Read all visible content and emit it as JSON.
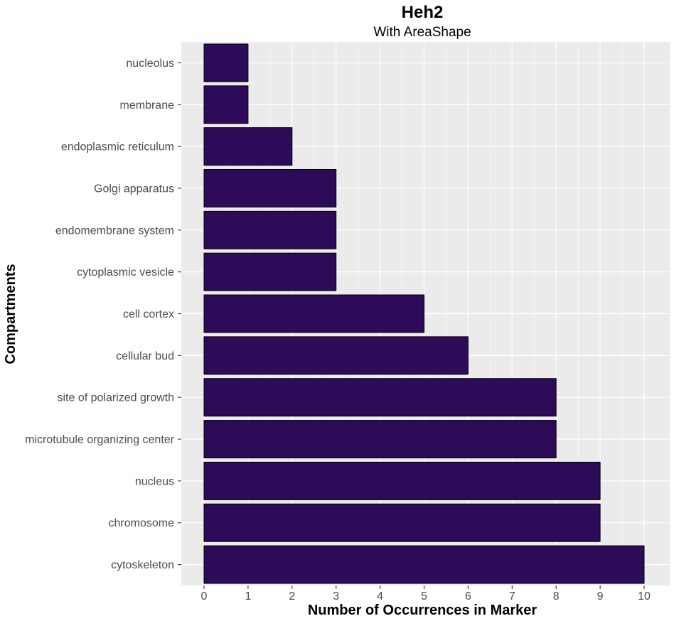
{
  "chart_data": {
    "type": "bar",
    "orientation": "horizontal",
    "title": "Heh2",
    "subtitle": "With AreaShape",
    "xlabel": "Number of Occurrences in Marker",
    "ylabel": "Compartments",
    "categories": [
      "nucleolus",
      "membrane",
      "endoplasmic reticulum",
      "Golgi apparatus",
      "endomembrane system",
      "cytoplasmic vesicle",
      "cell cortex",
      "cellular bud",
      "site of polarized growth",
      "microtubule organizing center",
      "nucleus",
      "chromosome",
      "cytoskeleton"
    ],
    "values": [
      1,
      1,
      2,
      3,
      3,
      3,
      5,
      6,
      8,
      8,
      9,
      9,
      10
    ],
    "xlim": [
      0,
      10
    ],
    "xticks": [
      "0",
      "1",
      "2",
      "3",
      "4",
      "5",
      "6",
      "7",
      "8",
      "9",
      "10"
    ],
    "grid": true,
    "colors": {
      "bar_fill": "#2d0b59",
      "bar_stroke": "#000000",
      "panel_background": "#ebebeb",
      "grid_line": "#ffffff"
    }
  }
}
